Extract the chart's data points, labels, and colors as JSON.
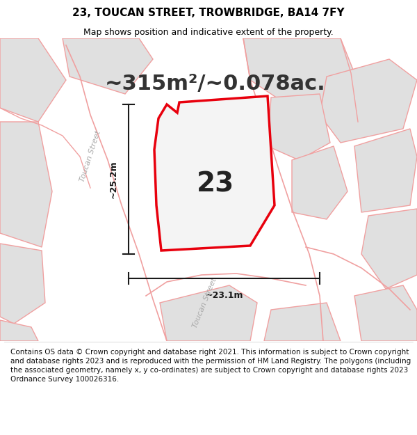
{
  "title_line1": "23, TOUCAN STREET, TROWBRIDGE, BA14 7FY",
  "title_line2": "Map shows position and indicative extent of the property.",
  "area_label": "~315m²/~0.078ac.",
  "number_label": "23",
  "dim_width": "~23.1m",
  "dim_height": "~25.2m",
  "street_label1": "Toucan Street",
  "street_label2": "Toucan Street",
  "footer_text": "Contains OS data © Crown copyright and database right 2021. This information is subject to Crown copyright and database rights 2023 and is reproduced with the permission of HM Land Registry. The polygons (including the associated geometry, namely x, y co-ordinates) are subject to Crown copyright and database rights 2023 Ordnance Survey 100026316.",
  "map_bg": "#f7f6f5",
  "property_fill": "#f0efee",
  "property_edge": "#e8000d",
  "building_fill": "#e0e0e0",
  "building_edge": "#f0a0a0",
  "road_color": "#f0a0a0",
  "dim_line_color": "#1a1a1a",
  "title_fontsize": 11,
  "subtitle_fontsize": 9,
  "area_fontsize": 22,
  "number_fontsize": 28,
  "footer_fontsize": 7.5
}
